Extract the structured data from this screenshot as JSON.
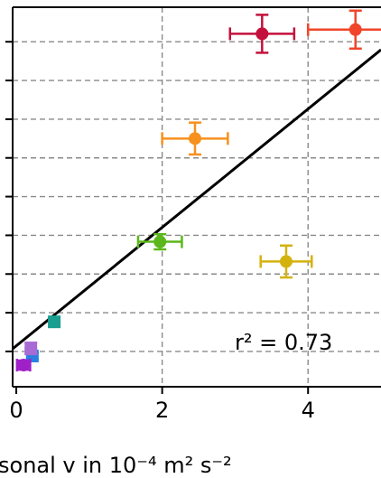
{
  "chart_data": {
    "type": "scatter",
    "xlabel": "sonal v in 10⁻⁴ m² s⁻²",
    "xlim": [
      -0.05,
      5.0
    ],
    "ylim": [
      0.0,
      1.0
    ],
    "x_ticks": [
      {
        "value": 0,
        "label": "0"
      },
      {
        "value": 2,
        "label": "2"
      },
      {
        "value": 4,
        "label": "4"
      }
    ],
    "y_gridlines": [
      0.093,
      0.195,
      0.297,
      0.399,
      0.501,
      0.603,
      0.705,
      0.807,
      0.909
    ],
    "x_gridlines": [
      2,
      4
    ],
    "grid": true,
    "grid_style": "dashed",
    "annotation": "r² = 0.73",
    "fit_line": {
      "x": [
        -0.05,
        5.0
      ],
      "y": [
        0.1,
        0.888
      ],
      "color": "#000000"
    },
    "points": [
      {
        "x": 3.37,
        "xerr": 0.44,
        "y": 0.93,
        "yerr": 0.05,
        "color": "#c4103c",
        "marker": "circle"
      },
      {
        "x": 4.65,
        "xerr": 0.65,
        "y": 0.941,
        "yerr": 0.05,
        "color": "#f0452a",
        "marker": "circle"
      },
      {
        "x": 2.45,
        "xerr": 0.45,
        "y": 0.654,
        "yerr": 0.042,
        "color": "#f7901e",
        "marker": "circle"
      },
      {
        "x": 1.97,
        "xerr": 0.3,
        "y": 0.382,
        "yerr": 0.02,
        "color": "#5bb71b",
        "marker": "circle"
      },
      {
        "x": 3.7,
        "xerr": 0.35,
        "y": 0.33,
        "yerr": 0.042,
        "color": "#d4b20e",
        "marker": "circle"
      },
      {
        "x": 0.52,
        "xerr": 0.0,
        "y": 0.171,
        "yerr": 0.0,
        "color": "#1a9e8f",
        "marker": "square"
      },
      {
        "x": 0.22,
        "xerr": 0.06,
        "y": 0.081,
        "yerr": 0.008,
        "color": "#2a7fe0",
        "marker": "square"
      },
      {
        "x": 0.2,
        "xerr": 0.07,
        "y": 0.101,
        "yerr": 0.015,
        "color": "#a86ad4",
        "marker": "circle"
      },
      {
        "x": 0.1,
        "xerr": 0.09,
        "y": 0.057,
        "yerr": 0.012,
        "color": "#a020c8",
        "marker": "circle"
      }
    ]
  }
}
